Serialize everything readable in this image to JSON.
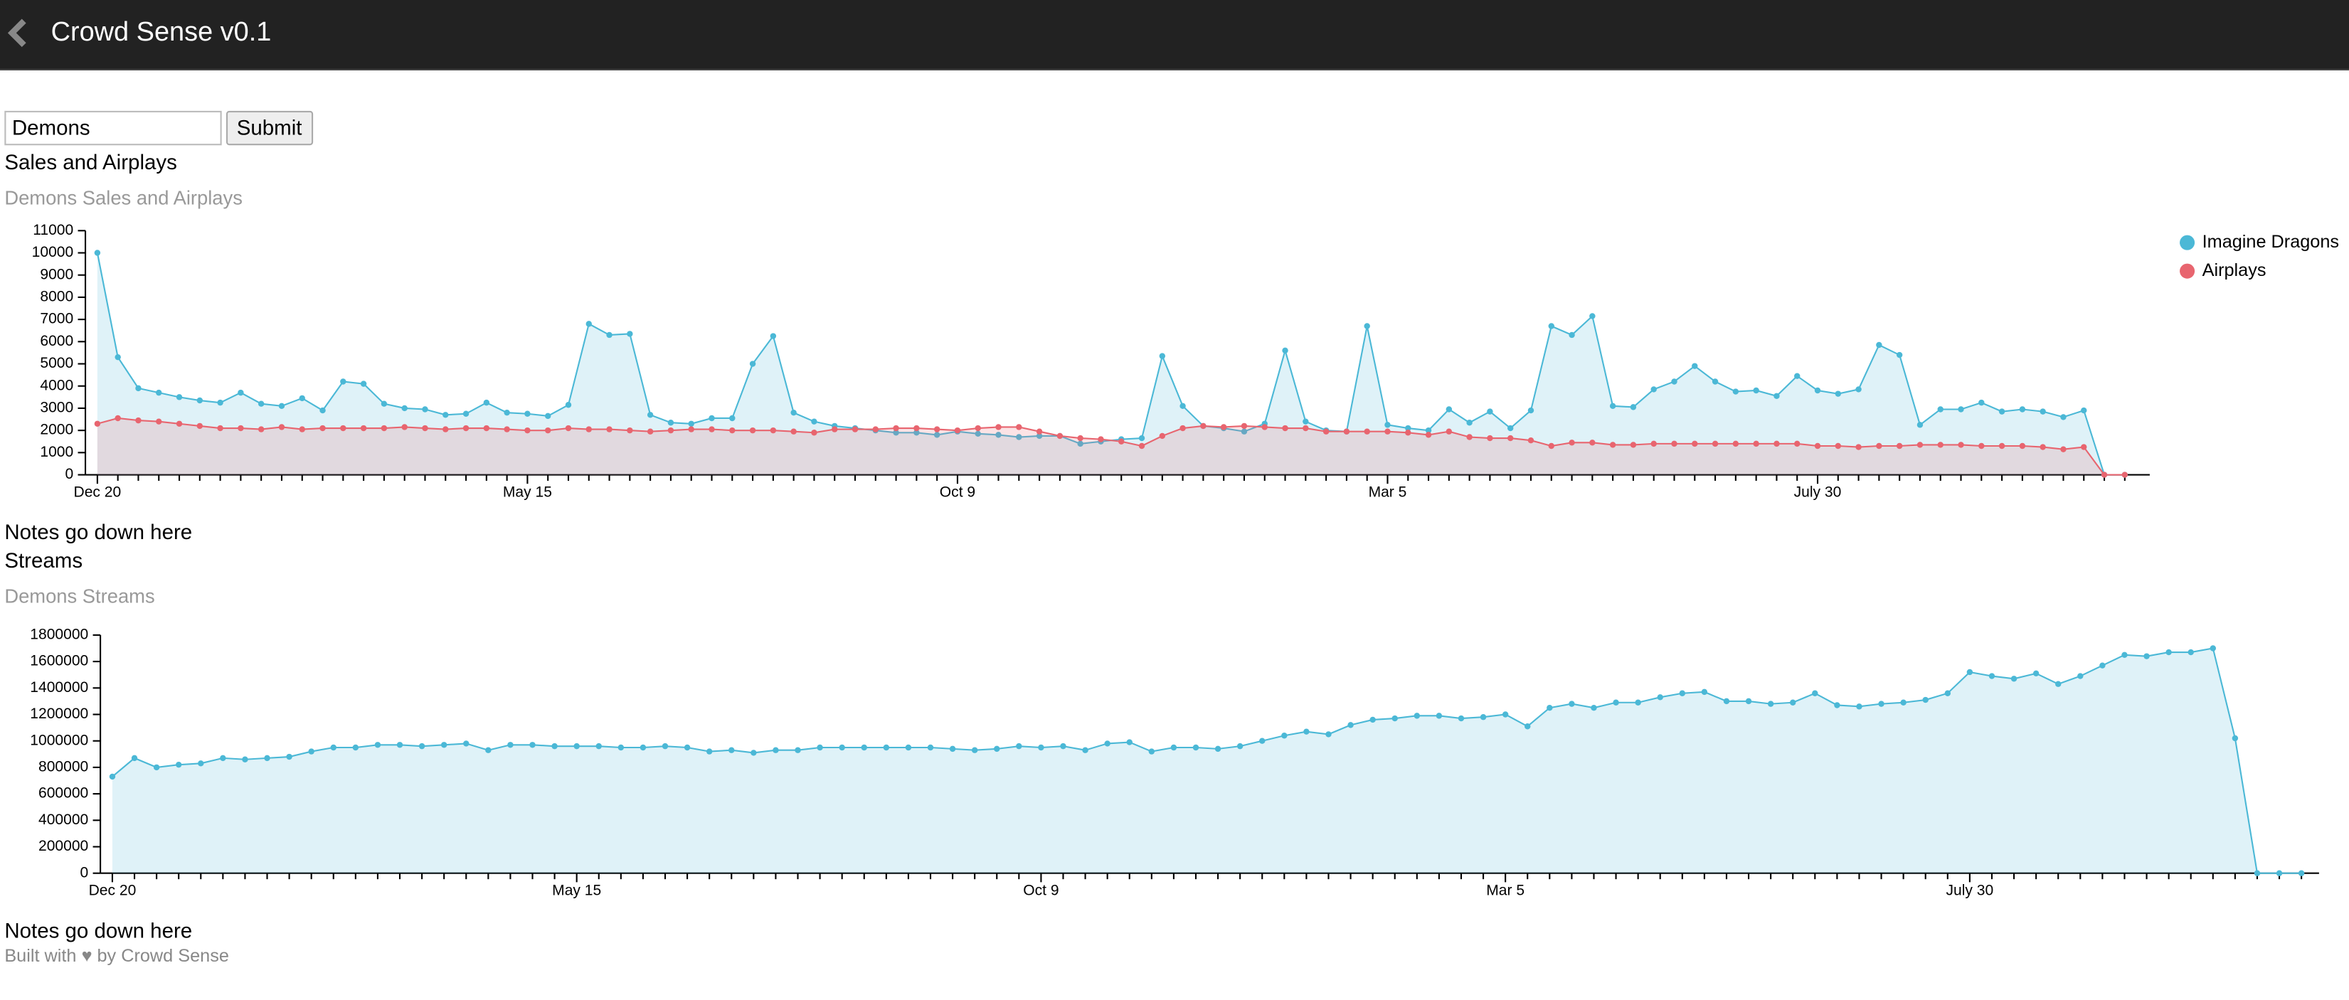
{
  "header": {
    "title": "Crowd Sense v0.1"
  },
  "form": {
    "input_value": "Demons",
    "button": "Submit"
  },
  "sections": [
    {
      "heading": "Sales and Airplays",
      "note": "Notes go down here"
    },
    {
      "heading": "Streams",
      "note": "Notes go down here"
    }
  ],
  "footer": "Built with ♥ by Crowd Sense",
  "chart_data": [
    {
      "type": "area",
      "title": "Demons Sales and Airplays",
      "categories": [
        "Dec 20",
        null,
        null,
        null,
        null,
        null,
        null,
        null,
        null,
        null,
        null,
        null,
        null,
        null,
        null,
        null,
        null,
        null,
        null,
        null,
        null,
        "May 15",
        null,
        null,
        null,
        null,
        null,
        null,
        null,
        null,
        null,
        null,
        null,
        null,
        null,
        null,
        null,
        null,
        null,
        null,
        null,
        null,
        "Oct 9",
        null,
        null,
        null,
        null,
        null,
        null,
        null,
        null,
        null,
        null,
        null,
        null,
        null,
        null,
        null,
        null,
        null,
        null,
        null,
        null,
        "Mar 5",
        null,
        null,
        null,
        null,
        null,
        null,
        null,
        null,
        null,
        null,
        null,
        null,
        null,
        null,
        null,
        null,
        null,
        null,
        null,
        null,
        "July 30",
        null,
        null,
        null,
        null,
        null,
        null,
        null,
        null,
        null,
        null,
        null,
        null,
        null,
        null,
        null
      ],
      "series": [
        {
          "name": "Imagine Dragons",
          "color": "#4bb8d6",
          "values": [
            10000,
            5300,
            3900,
            3700,
            3500,
            3350,
            3250,
            3700,
            3200,
            3100,
            3450,
            2900,
            4200,
            4100,
            3200,
            3000,
            2950,
            2700,
            2750,
            3250,
            2800,
            2750,
            2650,
            3150,
            6800,
            6300,
            6350,
            2700,
            2350,
            2300,
            2550,
            2550,
            5000,
            6250,
            2800,
            2400,
            2200,
            2100,
            2000,
            1900,
            1900,
            1800,
            1950,
            1850,
            1800,
            1700,
            1750,
            1750,
            1400,
            1500,
            1600,
            1650,
            5350,
            3100,
            2200,
            2100,
            1950,
            2300,
            5600,
            2400,
            2000,
            1950,
            6700,
            2250,
            2100,
            2000,
            2950,
            2350,
            2850,
            2100,
            2900,
            6700,
            6300,
            7150,
            3100,
            3050,
            3850,
            4200,
            4900,
            4200,
            3750,
            3800,
            3550,
            4450,
            3800,
            3650,
            3850,
            5850,
            5400,
            2250,
            2950,
            2950,
            3250,
            2850,
            2950,
            2850,
            2600,
            2900,
            0,
            0
          ]
        },
        {
          "name": "Airplays",
          "color": "#e8656f",
          "values": [
            2300,
            2550,
            2450,
            2400,
            2300,
            2200,
            2100,
            2100,
            2050,
            2150,
            2050,
            2100,
            2100,
            2100,
            2100,
            2150,
            2100,
            2050,
            2100,
            2100,
            2050,
            2000,
            2000,
            2100,
            2050,
            2050,
            2000,
            1950,
            2000,
            2050,
            2050,
            2000,
            2000,
            2000,
            1950,
            1900,
            2050,
            2050,
            2050,
            2100,
            2100,
            2050,
            2000,
            2100,
            2150,
            2150,
            1950,
            1750,
            1650,
            1600,
            1500,
            1300,
            1750,
            2100,
            2200,
            2150,
            2200,
            2150,
            2100,
            2100,
            1950,
            1950,
            1950,
            1950,
            1900,
            1800,
            1950,
            1700,
            1650,
            1650,
            1550,
            1300,
            1450,
            1450,
            1350,
            1350,
            1400,
            1400,
            1400,
            1400,
            1400,
            1400,
            1400,
            1400,
            1300,
            1300,
            1250,
            1300,
            1300,
            1350,
            1350,
            1350,
            1300,
            1300,
            1300,
            1250,
            1150,
            1250,
            0,
            0
          ]
        }
      ],
      "ylim": [
        0,
        11000
      ],
      "yticks": [
        0,
        1000,
        2000,
        3000,
        4000,
        5000,
        6000,
        7000,
        8000,
        9000,
        10000,
        11000
      ],
      "legend": "top-right"
    },
    {
      "type": "area",
      "title": "Demons Streams",
      "categories": [
        "Dec 20",
        null,
        null,
        null,
        null,
        null,
        null,
        null,
        null,
        null,
        null,
        null,
        null,
        null,
        null,
        null,
        null,
        null,
        null,
        null,
        null,
        "May 15",
        null,
        null,
        null,
        null,
        null,
        null,
        null,
        null,
        null,
        null,
        null,
        null,
        null,
        null,
        null,
        null,
        null,
        null,
        null,
        null,
        "Oct 9",
        null,
        null,
        null,
        null,
        null,
        null,
        null,
        null,
        null,
        null,
        null,
        null,
        null,
        null,
        null,
        null,
        null,
        null,
        null,
        null,
        "Mar 5",
        null,
        null,
        null,
        null,
        null,
        null,
        null,
        null,
        null,
        null,
        null,
        null,
        null,
        null,
        null,
        null,
        null,
        null,
        null,
        null,
        "July 30",
        null,
        null,
        null,
        null,
        null,
        null,
        null,
        null,
        null,
        null,
        null,
        null,
        null,
        null,
        null
      ],
      "series": [
        {
          "name": "Imagine Dragons",
          "color": "#4bb8d6",
          "values": [
            730000,
            870000,
            800000,
            820000,
            830000,
            870000,
            860000,
            870000,
            880000,
            920000,
            950000,
            950000,
            970000,
            970000,
            960000,
            970000,
            980000,
            930000,
            970000,
            970000,
            960000,
            960000,
            960000,
            950000,
            950000,
            960000,
            950000,
            920000,
            930000,
            910000,
            930000,
            930000,
            950000,
            950000,
            950000,
            950000,
            950000,
            950000,
            940000,
            930000,
            940000,
            960000,
            950000,
            960000,
            930000,
            980000,
            990000,
            920000,
            950000,
            950000,
            940000,
            960000,
            1000000,
            1040000,
            1070000,
            1050000,
            1120000,
            1160000,
            1170000,
            1190000,
            1190000,
            1170000,
            1180000,
            1200000,
            1110000,
            1250000,
            1280000,
            1250000,
            1290000,
            1290000,
            1330000,
            1360000,
            1370000,
            1300000,
            1300000,
            1280000,
            1290000,
            1360000,
            1270000,
            1260000,
            1280000,
            1290000,
            1310000,
            1360000,
            1520000,
            1490000,
            1470000,
            1510000,
            1430000,
            1490000,
            1570000,
            1650000,
            1640000,
            1670000,
            1670000,
            1700000,
            1020000,
            0,
            0,
            0
          ]
        }
      ],
      "ylim": [
        0,
        1800000
      ],
      "yticks": [
        0,
        200000,
        400000,
        600000,
        800000,
        1000000,
        1200000,
        1400000,
        1600000,
        1800000
      ]
    }
  ]
}
